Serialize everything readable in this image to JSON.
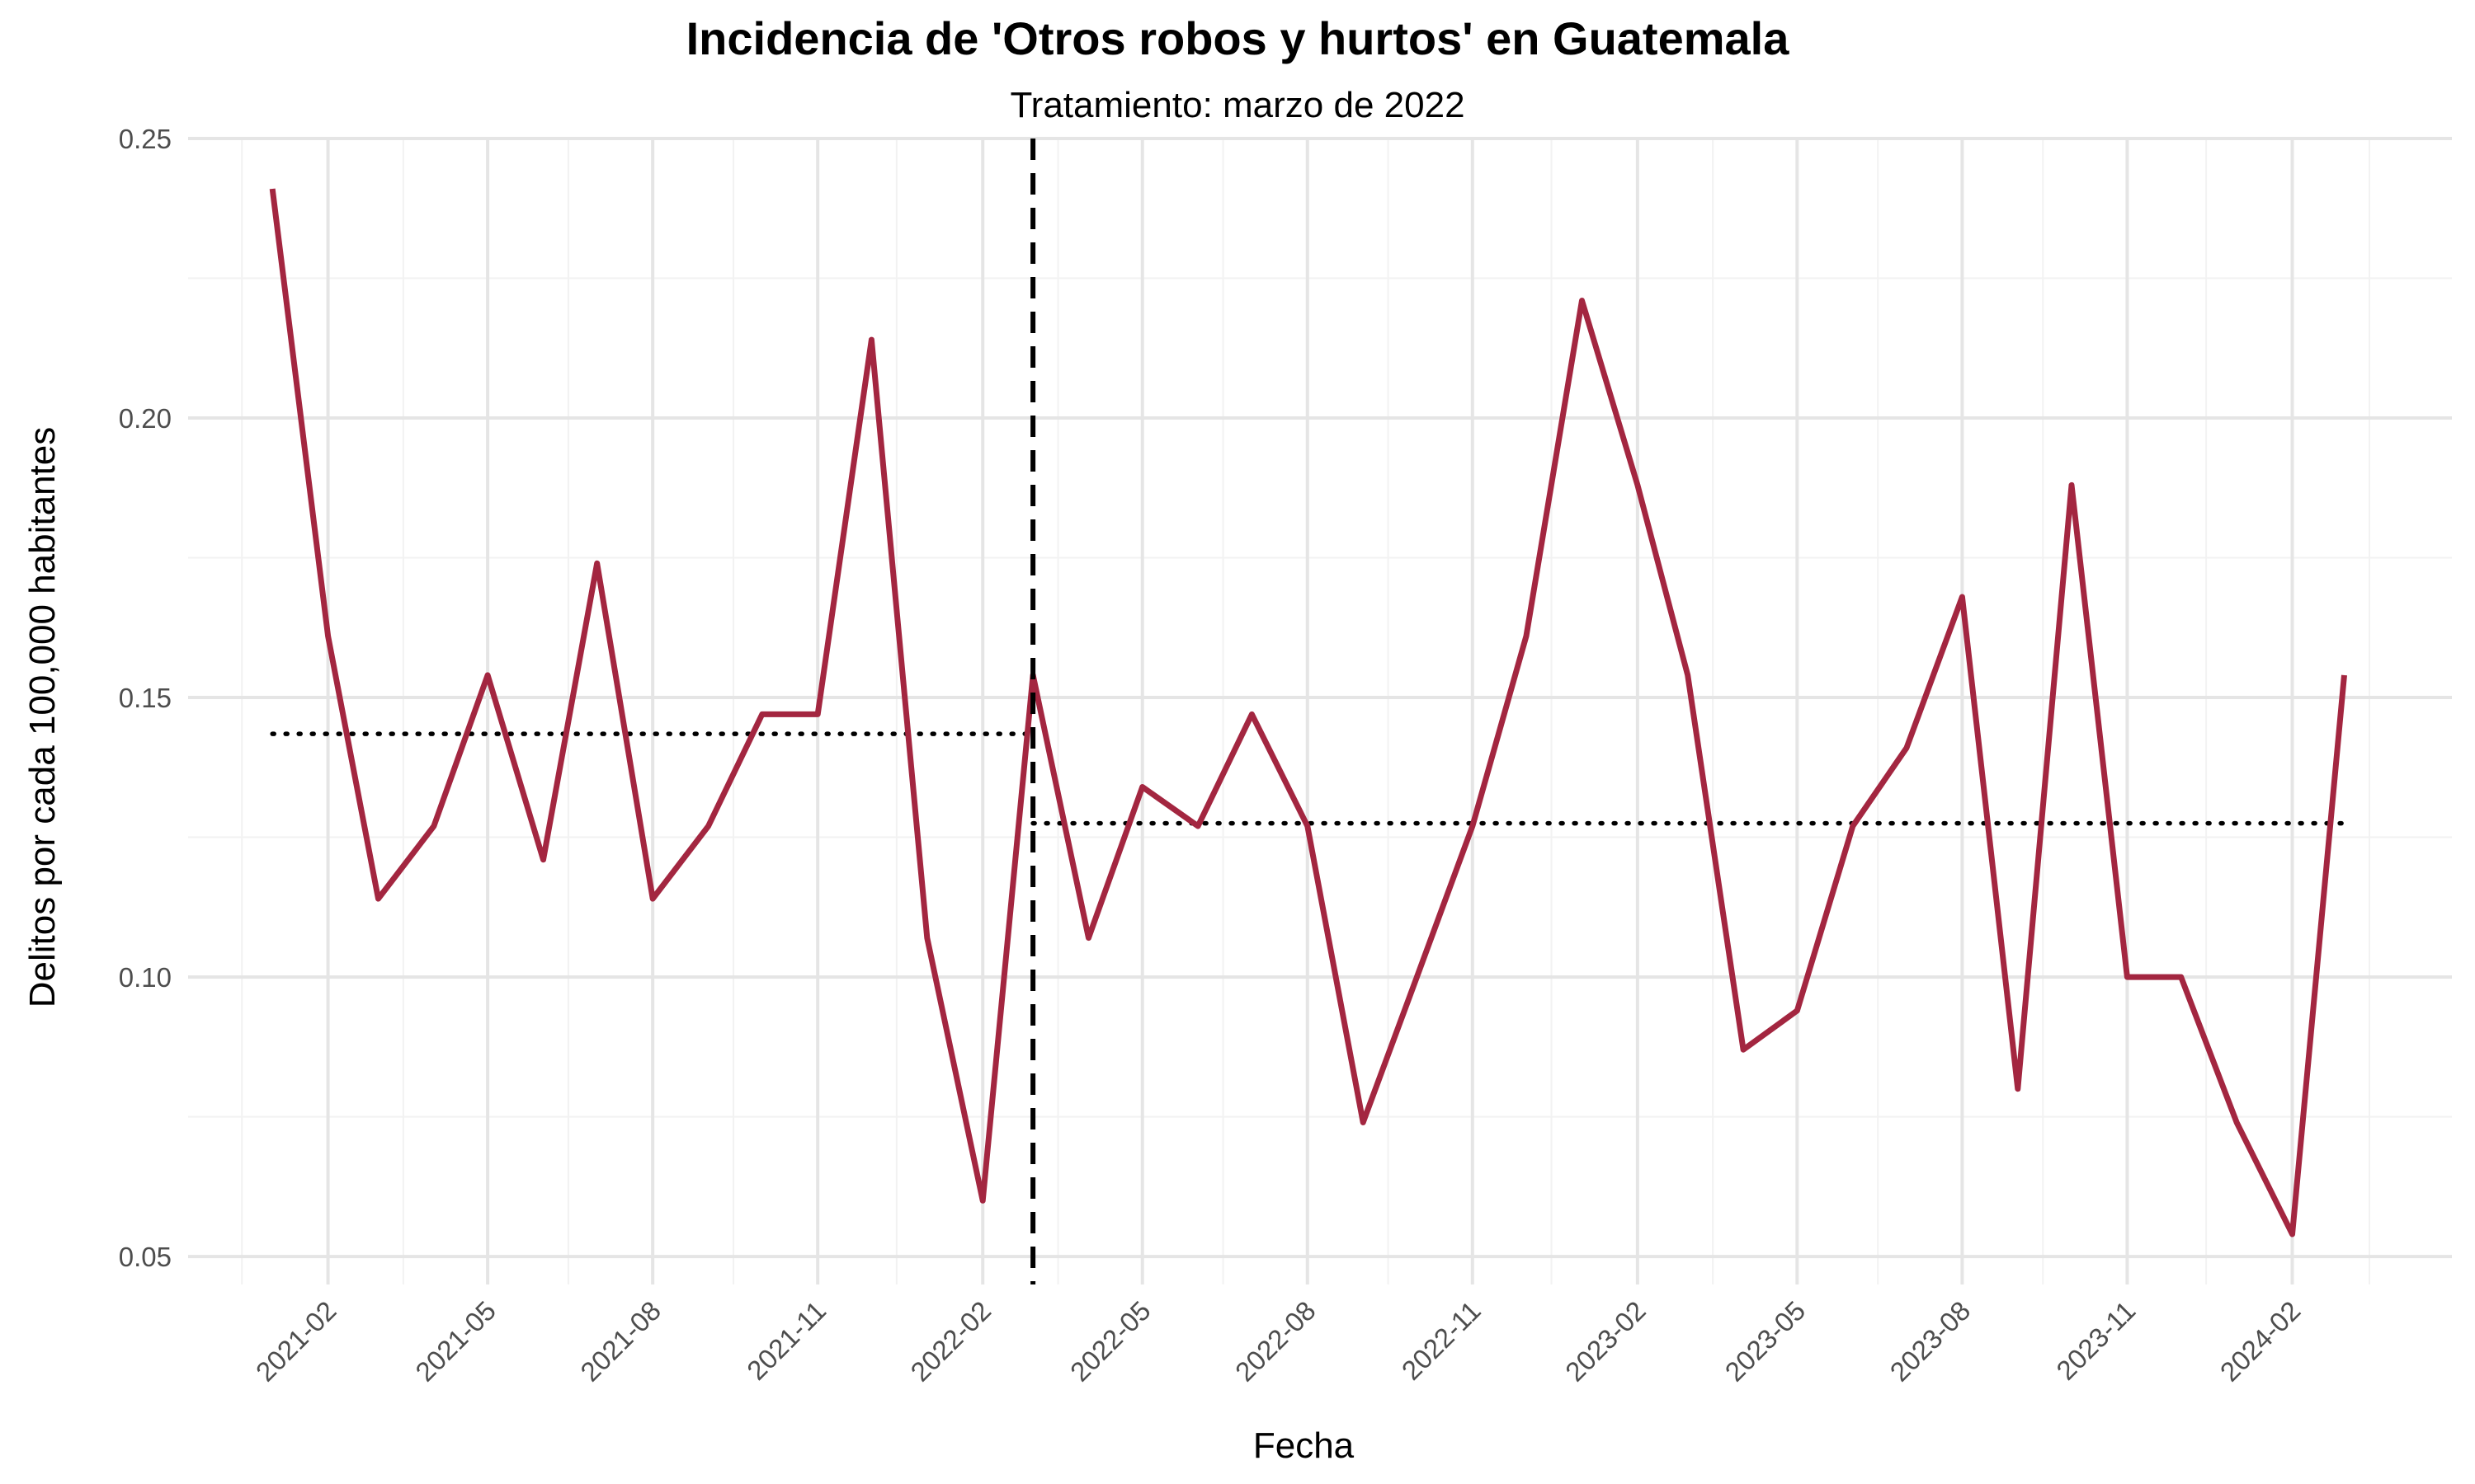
{
  "chart_data": {
    "type": "line",
    "title": "Incidencia de 'Otros robos y hurtos' en Guatemala",
    "subtitle": "Tratamiento: marzo de 2022",
    "xlabel": "Fecha",
    "ylabel": "Delitos por cada 100,000 habitantes",
    "xlim": [
      "2020-11-15",
      "2024-04-30"
    ],
    "ylim": [
      0.045,
      0.25
    ],
    "y_ticks": [
      0.05,
      0.1,
      0.15,
      0.2,
      0.25
    ],
    "y_tick_labels": [
      "0.05",
      "0.10",
      "0.15",
      "0.20",
      "0.25"
    ],
    "x_ticks": [
      "2021-02-01",
      "2021-05-01",
      "2021-08-01",
      "2021-11-01",
      "2022-02-01",
      "2022-05-01",
      "2022-08-01",
      "2022-11-01",
      "2023-02-01",
      "2023-05-01",
      "2023-08-01",
      "2023-11-01",
      "2024-02-01"
    ],
    "x_tick_labels": [
      "2021-02",
      "2021-05",
      "2021-08",
      "2021-11",
      "2022-02",
      "2022-05",
      "2022-08",
      "2022-11",
      "2023-02",
      "2023-05",
      "2023-08",
      "2023-11",
      "2024-02"
    ],
    "x_minor_ticks": [
      "2020-12-15",
      "2021-03-15",
      "2021-06-15",
      "2021-09-15",
      "2021-12-15",
      "2022-03-15",
      "2022-06-15",
      "2022-09-15",
      "2022-12-15",
      "2023-03-15",
      "2023-06-15",
      "2023-09-15",
      "2023-12-15",
      "2024-03-15"
    ],
    "y_minor_ticks": [
      0.075,
      0.125,
      0.175,
      0.225
    ],
    "grid": true,
    "series": [
      {
        "color": "#a32640",
        "x": [
          "2021-01-01",
          "2021-02-01",
          "2021-03-01",
          "2021-04-01",
          "2021-05-01",
          "2021-06-01",
          "2021-07-01",
          "2021-08-01",
          "2021-09-01",
          "2021-10-01",
          "2021-11-01",
          "2021-12-01",
          "2022-01-01",
          "2022-02-01",
          "2022-03-01",
          "2022-04-01",
          "2022-05-01",
          "2022-06-01",
          "2022-07-01",
          "2022-08-01",
          "2022-09-01",
          "2022-10-01",
          "2022-11-01",
          "2022-12-01",
          "2023-01-01",
          "2023-02-01",
          "2023-03-01",
          "2023-04-01",
          "2023-05-01",
          "2023-06-01",
          "2023-07-01",
          "2023-08-01",
          "2023-09-01",
          "2023-10-01",
          "2023-11-01",
          "2023-12-01",
          "2024-01-01",
          "2024-02-01",
          "2024-03-01"
        ],
        "values": [
          0.241,
          0.161,
          0.114,
          0.127,
          0.154,
          0.121,
          0.174,
          0.114,
          0.127,
          0.147,
          0.147,
          0.214,
          0.107,
          0.06,
          0.154,
          0.107,
          0.134,
          0.127,
          0.147,
          0.127,
          0.074,
          0.1,
          0.127,
          0.161,
          0.221,
          0.188,
          0.154,
          0.087,
          0.094,
          0.127,
          0.141,
          0.168,
          0.08,
          0.188,
          0.1,
          0.1,
          0.074,
          0.054,
          0.154
        ]
      }
    ],
    "treatment_line": {
      "x": "2022-03-01",
      "style": "dashed",
      "color": "#000000"
    },
    "mean_lines": [
      {
        "x0": "2021-01-01",
        "x1": "2022-03-01",
        "y": 0.1435,
        "style": "dotted",
        "color": "#000000"
      },
      {
        "x0": "2022-03-01",
        "x1": "2024-03-01",
        "y": 0.1275,
        "style": "dotted",
        "color": "#000000"
      }
    ]
  }
}
